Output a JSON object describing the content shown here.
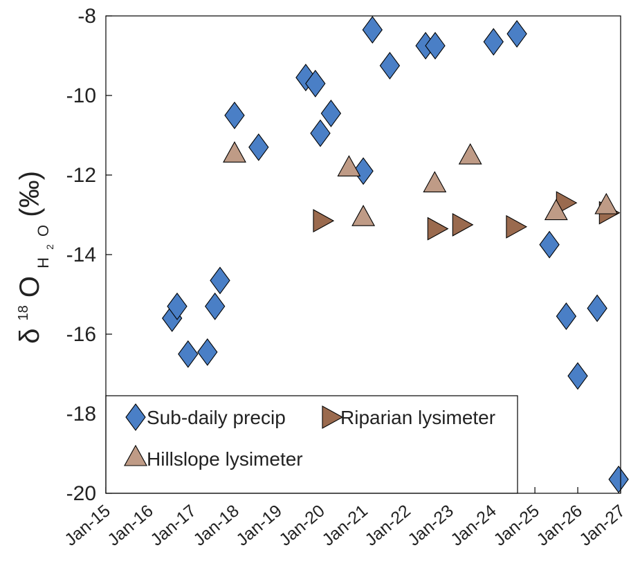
{
  "chart_data": {
    "type": "scatter",
    "ylabel": {
      "delta": "δ",
      "mass": "18",
      "element": "O",
      "sub_h": "H",
      "sub_2": "2",
      "sub_o": "O",
      "unit": "(‰)"
    },
    "xlabel": "",
    "y_range": [
      -20,
      -8
    ],
    "y_ticks": [
      -20,
      -18,
      -16,
      -14,
      -12,
      -10,
      -8
    ],
    "x_range": [
      "2015-01-01",
      "2027-01-01"
    ],
    "x_tick_labels": [
      "Jan-15",
      "Jan-16",
      "Jan-17",
      "Jan-18",
      "Jan-19",
      "Jan-20",
      "Jan-21",
      "Jan-22",
      "Jan-23",
      "Jan-24",
      "Jan-25",
      "Jan-26",
      "Jan-27"
    ],
    "grid": false,
    "legend_placement": "bottom-left",
    "series": [
      {
        "name": "Sub-daily precip",
        "marker": "diamond",
        "color": "#4a7fc6",
        "points": [
          {
            "x": "2016-07-18",
            "y": -15.6
          },
          {
            "x": "2016-08-30",
            "y": -15.3
          },
          {
            "x": "2016-12-01",
            "y": -16.5
          },
          {
            "x": "2017-05-15",
            "y": -16.45
          },
          {
            "x": "2017-07-18",
            "y": -15.3
          },
          {
            "x": "2017-08-30",
            "y": -14.65
          },
          {
            "x": "2018-01-01",
            "y": -10.5
          },
          {
            "x": "2018-07-25",
            "y": -11.3
          },
          {
            "x": "2019-08-30",
            "y": -9.55
          },
          {
            "x": "2019-11-20",
            "y": -9.7
          },
          {
            "x": "2020-01-01",
            "y": -10.95
          },
          {
            "x": "2020-04-01",
            "y": -10.45
          },
          {
            "x": "2021-01-01",
            "y": -11.9
          },
          {
            "x": "2021-03-20",
            "y": -8.35
          },
          {
            "x": "2021-08-15",
            "y": -9.25
          },
          {
            "x": "2022-06-15",
            "y": -8.75
          },
          {
            "x": "2022-09-05",
            "y": -8.75
          },
          {
            "x": "2024-01-15",
            "y": -8.65
          },
          {
            "x": "2024-08-01",
            "y": -8.45
          },
          {
            "x": "2025-05-05",
            "y": -13.75
          },
          {
            "x": "2025-09-25",
            "y": -15.55
          },
          {
            "x": "2026-01-01",
            "y": -17.05
          },
          {
            "x": "2026-06-15",
            "y": -15.35
          },
          {
            "x": "2026-12-15",
            "y": -19.65
          }
        ]
      },
      {
        "name": "Riparian lysimeter",
        "marker": "triangle-right",
        "color": "#9a6a4e",
        "points": [
          {
            "x": "2020-01-01",
            "y": -13.15
          },
          {
            "x": "2022-09-01",
            "y": -13.35
          },
          {
            "x": "2023-04-01",
            "y": -13.25
          },
          {
            "x": "2024-07-01",
            "y": -13.3
          },
          {
            "x": "2025-09-01",
            "y": -12.7
          },
          {
            "x": "2026-09-01",
            "y": -12.95
          }
        ]
      },
      {
        "name": "Hillslope lysimeter",
        "marker": "triangle-up",
        "color": "#bf9b86",
        "points": [
          {
            "x": "2018-01-01",
            "y": -11.5
          },
          {
            "x": "2020-09-01",
            "y": -11.85
          },
          {
            "x": "2021-01-01",
            "y": -13.1
          },
          {
            "x": "2022-09-01",
            "y": -12.25
          },
          {
            "x": "2023-07-01",
            "y": -11.55
          },
          {
            "x": "2025-07-01",
            "y": -12.95
          },
          {
            "x": "2026-09-01",
            "y": -12.8
          }
        ]
      }
    ]
  }
}
